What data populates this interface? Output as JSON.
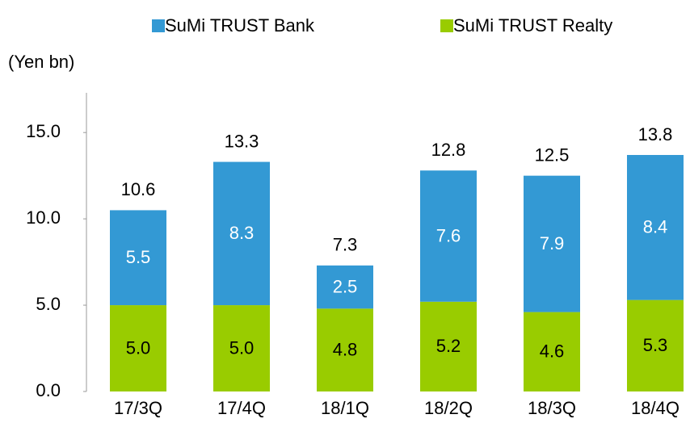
{
  "chart_data": {
    "type": "stacked_bar",
    "y_label": "(Yen bn)",
    "categories": [
      "17/3Q",
      "17/4Q",
      "18/1Q",
      "18/2Q",
      "18/3Q",
      "18/4Q"
    ],
    "series": [
      {
        "name": "SuMi TRUST Bank",
        "color": "#3399d4",
        "values": [
          5.5,
          8.3,
          2.5,
          7.6,
          7.9,
          8.4
        ]
      },
      {
        "name": "SuMi TRUST Realty",
        "color": "#99cc00",
        "values": [
          5,
          5,
          4.8,
          5.2,
          4.6,
          5.3
        ],
        "value_labels": [
          "5.0",
          "5.0",
          "4.8",
          "5.2",
          "4.6",
          "5.3"
        ]
      }
    ],
    "totals": [
      10.6,
      13.3,
      7.3,
      12.8,
      12.5,
      13.8
    ],
    "ylim": [
      0,
      17.3
    ],
    "yticks": [
      {
        "value": 0,
        "label": "0.0"
      },
      {
        "value": 5,
        "label": "5.0"
      },
      {
        "value": 10,
        "label": "10.0"
      },
      {
        "value": 15,
        "label": "15.0"
      }
    ],
    "legend": "top"
  }
}
